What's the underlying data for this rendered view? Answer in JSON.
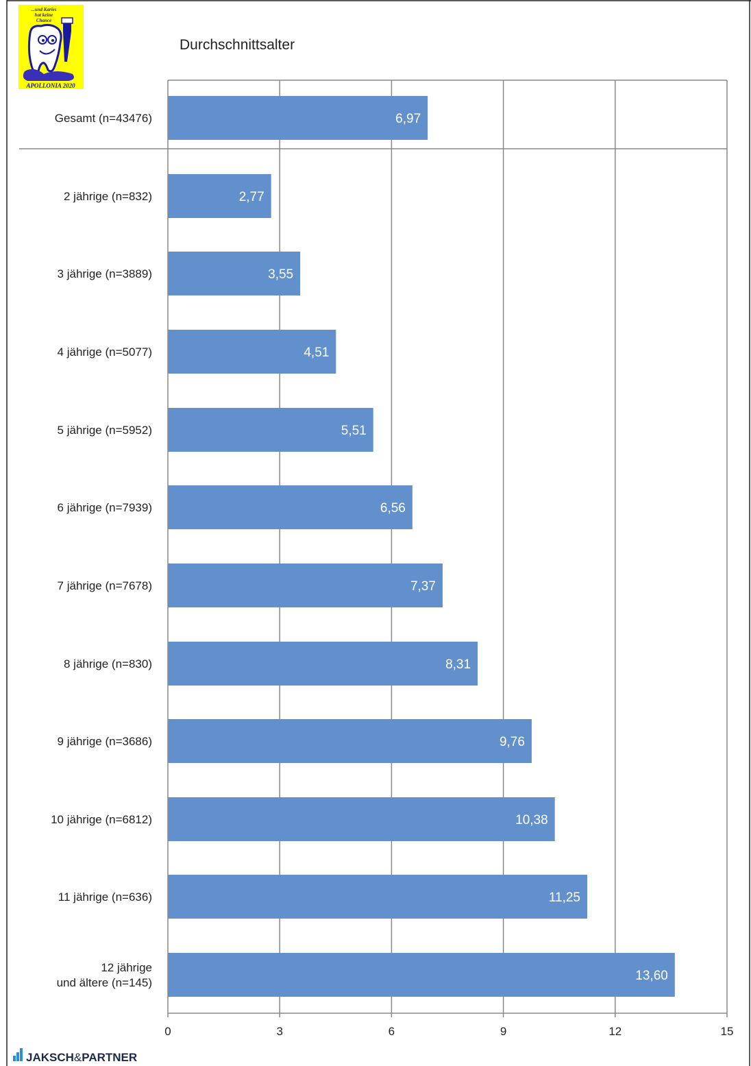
{
  "logo": {
    "tagline": [
      "...und Karies",
      "hat keine",
      "Chance"
    ],
    "name": "APOLLONIA 2020",
    "bg_color": "#ffff00",
    "ink_color": "#1a1aa0"
  },
  "brand": {
    "name_part1": "JAKSCH",
    "name_amp": "&",
    "name_part2": "PARTNER",
    "accent_color": "#2b8fd6",
    "text_color": "#1f2a44"
  },
  "chart_data": {
    "type": "bar",
    "orientation": "horizontal",
    "title": "Durchschnittsalter",
    "xlim": [
      0,
      15
    ],
    "xticks": [
      "0",
      "3",
      "6",
      "9",
      "12",
      "15"
    ],
    "grid": true,
    "bar_color": "#6190cc",
    "label_color": "#ffffff",
    "categories": [
      [
        "Gesamt (n=43476)"
      ],
      [
        "2 jährige  (n=832)"
      ],
      [
        "3 jährige  (n=3889)"
      ],
      [
        "4 jährige  (n=5077)"
      ],
      [
        "5 jährige  (n=5952)"
      ],
      [
        "6 jährige  (n=7939)"
      ],
      [
        "7 jährige  (n=7678)"
      ],
      [
        "8 jährige  (n=830)"
      ],
      [
        "9 jährige  (n=3686)"
      ],
      [
        "10 jährige (n=6812)"
      ],
      [
        "11 jährige (n=636)"
      ],
      [
        "12 jährige",
        "und ältere (n=145)"
      ]
    ],
    "values": [
      6.97,
      2.77,
      3.55,
      4.51,
      5.51,
      6.56,
      7.37,
      8.31,
      9.76,
      10.38,
      11.25,
      13.6
    ],
    "value_labels": [
      "6,97",
      "2,77",
      "3,55",
      "4,51",
      "5,51",
      "6,56",
      "7,37",
      "8,31",
      "9,76",
      "10,38",
      "11,25",
      "13,60"
    ]
  }
}
